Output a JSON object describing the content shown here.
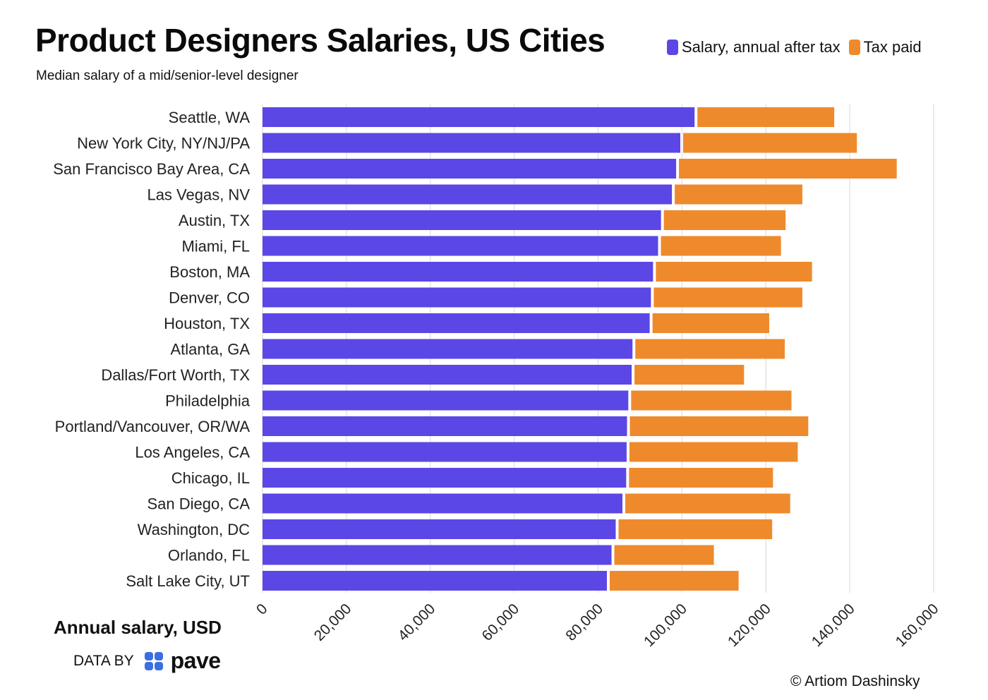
{
  "title": "Product Designers Salaries, US Cities",
  "subtitle": "Median salary of a mid/senior-level designer",
  "legend": [
    {
      "label": "Salary, annual after tax",
      "color": "#5b47e5"
    },
    {
      "label": "Tax paid",
      "color": "#ef8a2c"
    }
  ],
  "axis_title": "Annual salary, USD",
  "credit": {
    "prefix": "DATA BY",
    "brand": "pave"
  },
  "copyright": "© Artiom Dashinsky",
  "chart_data": {
    "type": "bar",
    "orientation": "horizontal",
    "stacked": true,
    "title": "Product Designers Salaries, US Cities",
    "xlabel": "Annual salary, USD",
    "xlim": [
      0,
      160000
    ],
    "xticks": [
      0,
      20000,
      40000,
      60000,
      80000,
      100000,
      120000,
      140000,
      160000
    ],
    "tick_labels": [
      "0",
      "20,000",
      "40,000",
      "60,000",
      "80,000",
      "100,000",
      "120,000",
      "140,000",
      "160,000"
    ],
    "grid": true,
    "categories": [
      "Seattle, WA",
      "New York City, NY/NJ/PA",
      "San Francisco Bay Area, CA",
      "Las Vegas, NV",
      "Austin, TX",
      "Miami, FL",
      "Boston, MA",
      "Denver, CO",
      "Houston, TX",
      "Atlanta, GA",
      "Dallas/Fort Worth, TX",
      "Philadelphia",
      "Portland/Vancouver, OR/WA",
      "Los Angeles, CA",
      "Chicago, IL",
      "San Diego, CA",
      "Washington, DC",
      "Orlando, FL",
      "Salt Lake City, UT"
    ],
    "series": [
      {
        "name": "Salary, annual after tax",
        "color": "#5b47e5",
        "values": [
          103000,
          99600,
          98600,
          97600,
          95000,
          94300,
          93100,
          92600,
          92300,
          88200,
          88000,
          87200,
          86900,
          86800,
          86700,
          85800,
          84200,
          83200,
          82100
        ]
      },
      {
        "name": "Tax paid",
        "color": "#ef8a2c",
        "values": [
          33300,
          42100,
          52600,
          31100,
          29700,
          29300,
          37900,
          36100,
          28500,
          36300,
          26800,
          38900,
          43200,
          40800,
          35000,
          40000,
          37300,
          24400,
          31400
        ]
      }
    ]
  }
}
